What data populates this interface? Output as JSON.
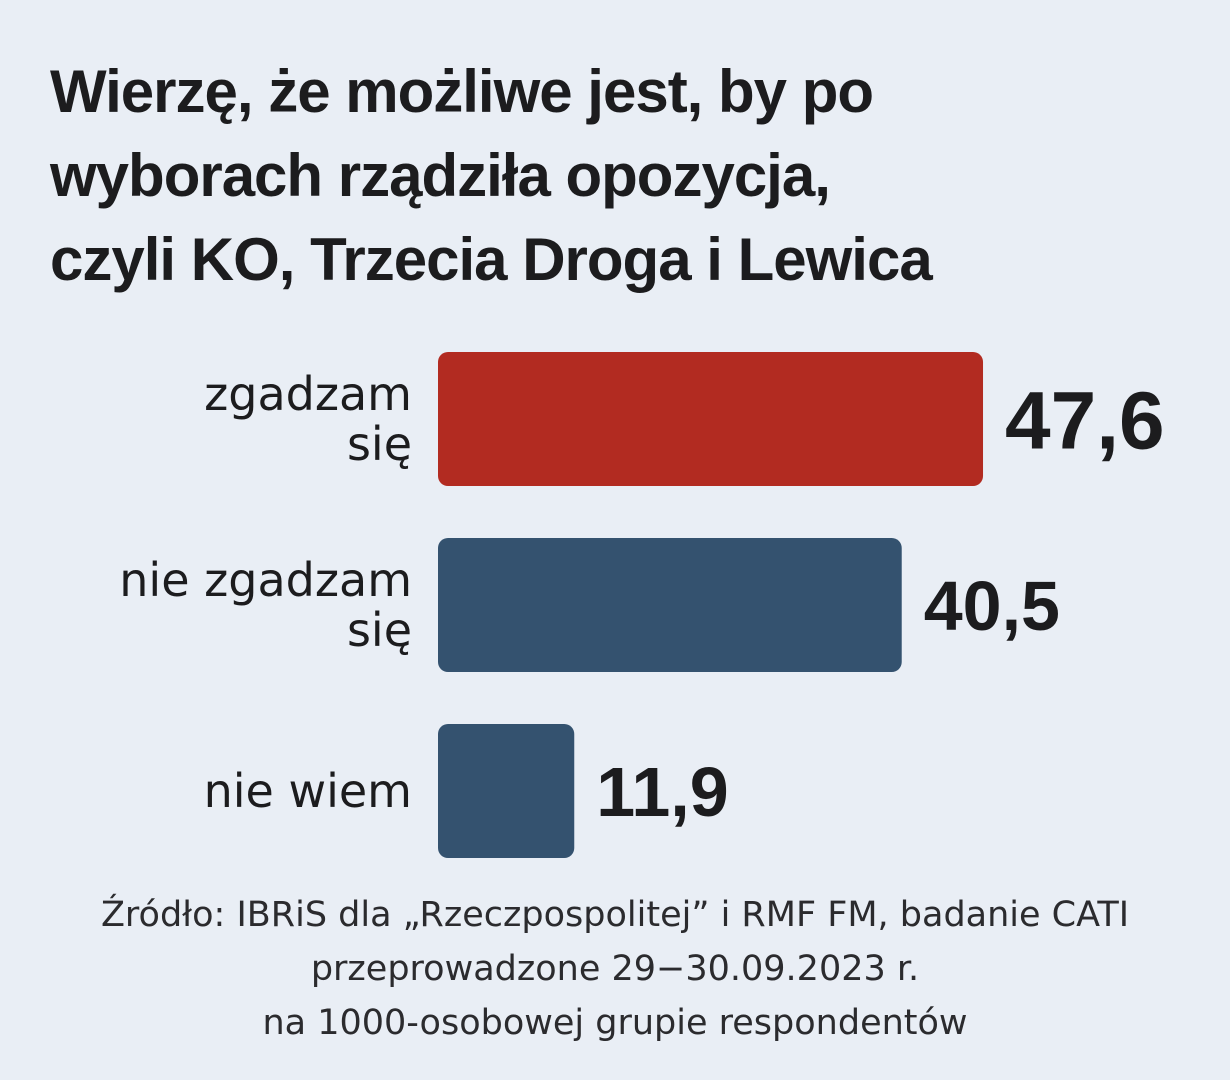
{
  "title_lines": [
    "Wierzę, że możliwe jest, by po",
    "wyborach rządziła opozycja,",
    "czyli KO, Trzecia Droga i Lewica"
  ],
  "source_lines": [
    "Źródło: IBRiS dla „Rzeczpospolitej” i RMF FM, badanie CATI",
    "przeprowadzone 29−30.09.2023 r.",
    "na 1000-osobowej grupie respondentów"
  ],
  "colors": {
    "background": "#e9eef5",
    "agree": "#b22b21",
    "other": "#34526f",
    "text": "#1c1c1e"
  },
  "chart_data": {
    "type": "bar",
    "orientation": "horizontal",
    "title": "Wierzę, że możliwe jest, by po wyborach rządziła opozycja, czyli KO, Trzecia Droga i Lewica",
    "categories": [
      [
        "zgadzam",
        "się"
      ],
      [
        "nie zgadzam",
        "się"
      ],
      [
        "nie wiem"
      ]
    ],
    "values": [
      47.6,
      40.5,
      11.9
    ],
    "value_labels": [
      "47,6",
      "40,5",
      "11,9"
    ],
    "bar_colors": [
      "#b22b21",
      "#34526f",
      "#34526f"
    ],
    "xlabel": "",
    "ylabel": "",
    "grid": false,
    "legend": "none"
  }
}
